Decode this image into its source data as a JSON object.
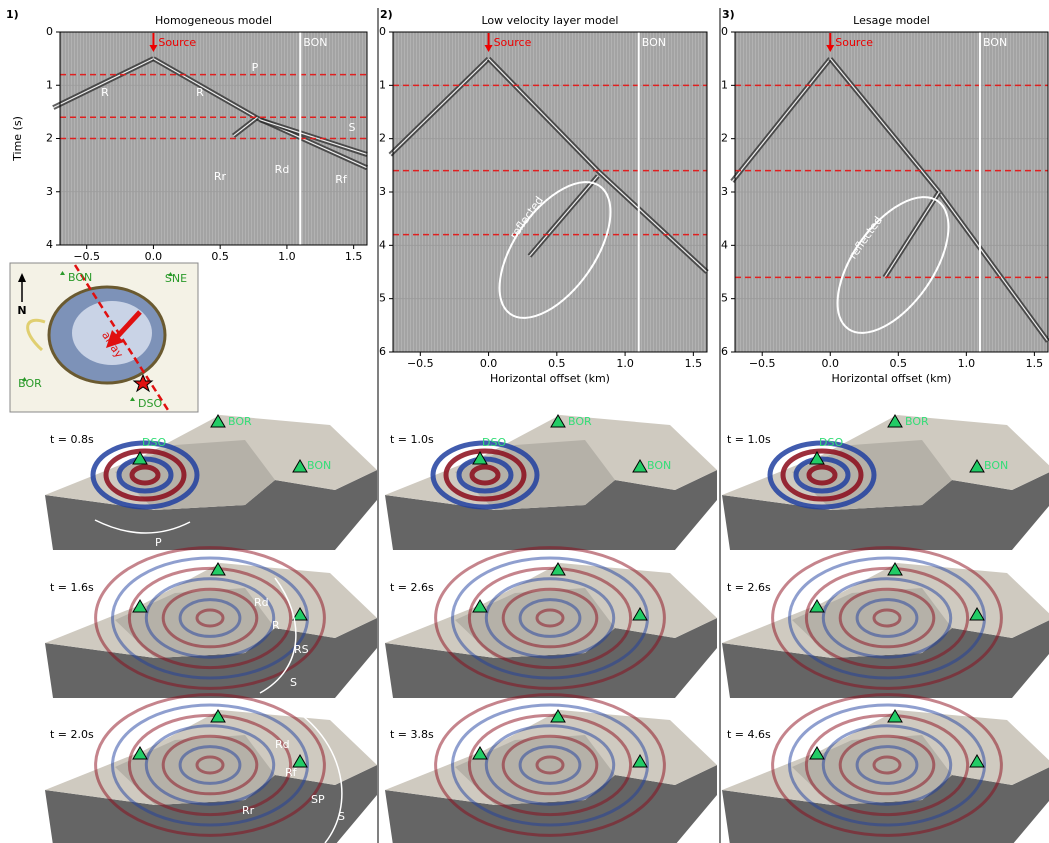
{
  "panels": [
    {
      "label": "1)",
      "title": "Homogeneous model",
      "ylabel": "Time (s)",
      "xlim": [
        -0.7,
        1.6
      ],
      "ylim": [
        0,
        4
      ],
      "xticks": [
        {
          "value": -0.5,
          "label": "−0.5"
        },
        {
          "value": 0,
          "label": "0.0"
        },
        0.5,
        {
          "value": 1,
          "label": "1.0"
        },
        1.5
      ],
      "yticks": [
        0,
        1,
        2,
        3,
        4
      ],
      "markers": [
        0.8,
        1.6,
        2.0
      ],
      "station_offset": 1.1,
      "source": "Source",
      "station": "BON",
      "annotations": [
        "P",
        "R",
        "R",
        "S",
        "Rr",
        "Rd",
        "Rf"
      ]
    },
    {
      "label": "2)",
      "title": "Low velocity layer model",
      "xlabel": "Horizontal offset (km)",
      "xlim": [
        -0.7,
        1.6
      ],
      "ylim": [
        0,
        6
      ],
      "xticks": [
        {
          "value": -0.5,
          "label": "−0.5"
        },
        {
          "value": 0,
          "label": "0.0"
        },
        0.5,
        {
          "value": 1,
          "label": "1.0"
        },
        1.5
      ],
      "yticks": [
        0,
        1,
        2,
        3,
        4,
        5,
        6
      ],
      "markers": [
        1.0,
        2.6,
        3.8
      ],
      "station_offset": 1.1,
      "source": "Source",
      "station": "BON",
      "annotations": [
        "reflected"
      ]
    },
    {
      "label": "3)",
      "title": "Lesage model",
      "xlabel": "Horizontal offset (km)",
      "xlim": [
        -0.7,
        1.6
      ],
      "ylim": [
        0,
        6
      ],
      "xticks": [
        {
          "value": -0.5,
          "label": "−0.5"
        },
        {
          "value": 0,
          "label": "0.0"
        },
        0.5,
        {
          "value": 1,
          "label": "1.0"
        },
        1.5
      ],
      "yticks": [
        0,
        1,
        2,
        3,
        4,
        5,
        6
      ],
      "markers": [
        1.0,
        2.6,
        4.6
      ],
      "station_offset": 1.1,
      "source": "Source",
      "station": "BON",
      "annotations": [
        "reflected"
      ]
    }
  ],
  "map": {
    "north": "N",
    "array": "array",
    "stations": [
      "BON",
      "SNE",
      "BOR",
      "DSO"
    ]
  },
  "snapshots": [
    [
      {
        "time": "t = 0.8s",
        "stations": [
          "DSO",
          "BOR",
          "BON"
        ],
        "annotations": [
          "P"
        ]
      },
      {
        "time": "t = 1.6s",
        "annotations": [
          "Rd",
          "R",
          "RS",
          "S"
        ]
      },
      {
        "time": "t = 2.0s",
        "annotations": [
          "Rd",
          "Rf",
          "SP",
          "S",
          "Rr"
        ]
      }
    ],
    [
      {
        "time": "t = 1.0s",
        "stations": [
          "DSO",
          "BOR",
          "BON"
        ]
      },
      {
        "time": "t = 2.6s"
      },
      {
        "time": "t = 3.8s"
      }
    ],
    [
      {
        "time": "t = 1.0s",
        "stations": [
          "DSO",
          "BOR",
          "BON"
        ]
      },
      {
        "time": "t = 2.6s"
      },
      {
        "time": "t = 4.6s"
      }
    ]
  ]
}
